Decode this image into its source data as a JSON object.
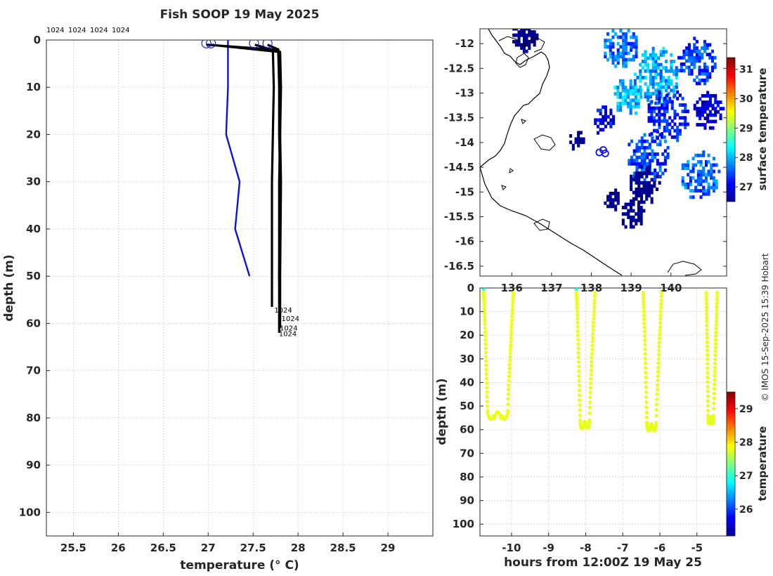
{
  "credit": "© IMOS 15-Sep-2025 15:39 Hobart",
  "chart_data": [
    {
      "type": "line",
      "name": "profile",
      "title": "Fish SOOP 19 May 2025",
      "xlabel": "temperature (° C)",
      "ylabel": "depth (m)",
      "xlim": [
        25.2,
        29.5
      ],
      "ylim": [
        0,
        105
      ],
      "xticks": [
        "25.5",
        "26",
        "26.5",
        "27",
        "27.5",
        "28",
        "28.5",
        "29"
      ],
      "xtick_values": [
        25.5,
        26,
        26.5,
        27,
        27.5,
        28,
        28.5,
        29
      ],
      "yticks": [
        "0",
        "10",
        "20",
        "30",
        "40",
        "50",
        "60",
        "70",
        "80",
        "90",
        "100"
      ],
      "ytick_values": [
        0,
        10,
        20,
        30,
        40,
        50,
        60,
        70,
        80,
        90,
        100
      ],
      "top_labels": [
        "1024",
        "1024",
        "1024",
        "1024"
      ],
      "series": [
        {
          "name": "climatology",
          "color": "#0a14d4",
          "temps": [
            27.22,
            27.22,
            27.2,
            27.35,
            27.3,
            27.46
          ],
          "depths": [
            0,
            10,
            20,
            30,
            40,
            50
          ]
        },
        {
          "name": "profile-1",
          "color": "#000000",
          "temps": [
            26.98,
            27.72,
            27.73,
            27.72,
            27.71,
            27.71,
            27.71
          ],
          "depths": [
            1,
            2,
            10,
            20,
            30,
            50,
            56.5
          ]
        },
        {
          "name": "profile-2",
          "color": "#000000",
          "temps": [
            27.02,
            27.78,
            27.79,
            27.79,
            27.8,
            27.79,
            27.8
          ],
          "depths": [
            1,
            2.5,
            10,
            20,
            30,
            50,
            58.5
          ]
        },
        {
          "name": "profile-3",
          "color": "#000000",
          "temps": [
            27.52,
            27.8,
            27.81,
            27.8,
            27.81,
            27.8,
            27.8
          ],
          "depths": [
            1,
            2.5,
            10,
            20,
            30,
            50,
            61
          ]
        },
        {
          "name": "profile-4",
          "color": "#000000",
          "temps": [
            27.66,
            27.78,
            27.8,
            27.8,
            27.79,
            27.79,
            27.79
          ],
          "depths": [
            1,
            2,
            10,
            20,
            30,
            50,
            62
          ]
        }
      ],
      "surface_markers": [
        {
          "temp": 26.98,
          "depth": 0.7
        },
        {
          "temp": 27.03,
          "depth": 0.7
        },
        {
          "temp": 27.51,
          "depth": 0.7
        },
        {
          "temp": 27.66,
          "depth": 0.7
        }
      ],
      "end_labels": [
        {
          "text": "1024",
          "temp": 27.72,
          "depth": 56.5
        },
        {
          "text": "1024",
          "temp": 27.8,
          "depth": 58.3
        },
        {
          "text": "1024",
          "temp": 27.78,
          "depth": 60.3
        },
        {
          "text": "1024",
          "temp": 27.77,
          "depth": 61.5
        }
      ]
    },
    {
      "type": "heatmap",
      "name": "map",
      "xlim": [
        135.2,
        141.4
      ],
      "ylim": [
        -16.7,
        -11.7
      ],
      "xticks": [
        "136",
        "137",
        "138",
        "139",
        "140"
      ],
      "xtick_values": [
        136,
        137,
        138,
        139,
        140
      ],
      "yticks": [
        "-12",
        "-12.5",
        "-13",
        "-13.5",
        "-14",
        "-14.5",
        "-15",
        "-15.5",
        "-16",
        "-16.5"
      ],
      "ytick_values": [
        -12,
        -12.5,
        -13,
        -13.5,
        -14,
        -14.5,
        -15,
        -15.5,
        -16,
        -16.5
      ],
      "colorbar_label": "surface temperature",
      "colorbar_ticks": [
        "27",
        "28",
        "29",
        "30",
        "31"
      ],
      "colorbar_values": [
        27,
        28,
        29,
        30,
        31
      ],
      "colorbar_range": [
        26.5,
        31.4
      ],
      "track": [
        {
          "lon": 138.2,
          "lat": -14.2
        },
        {
          "lon": 138.3,
          "lat": -14.15
        },
        {
          "lon": 138.35,
          "lat": -14.22
        }
      ],
      "sst_blobs": [
        {
          "lon": 136.3,
          "lat": -11.9,
          "r": 0.35,
          "t": 26.0
        },
        {
          "lon": 138.7,
          "lat": -12.1,
          "r": 0.45,
          "t": 27.6
        },
        {
          "lon": 139.6,
          "lat": -12.7,
          "r": 0.6,
          "t": 27.9
        },
        {
          "lon": 140.6,
          "lat": -12.4,
          "r": 0.5,
          "t": 27.4
        },
        {
          "lon": 138.9,
          "lat": -13.1,
          "r": 0.4,
          "t": 28.0
        },
        {
          "lon": 139.9,
          "lat": -13.5,
          "r": 0.55,
          "t": 27.2
        },
        {
          "lon": 140.9,
          "lat": -13.4,
          "r": 0.4,
          "t": 26.8
        },
        {
          "lon": 139.4,
          "lat": -14.3,
          "r": 0.55,
          "t": 27.4
        },
        {
          "lon": 140.7,
          "lat": -14.7,
          "r": 0.5,
          "t": 27.6
        },
        {
          "lon": 139.3,
          "lat": -14.9,
          "r": 0.4,
          "t": 26.1
        },
        {
          "lon": 138.5,
          "lat": -15.2,
          "r": 0.25,
          "t": 26.0
        },
        {
          "lon": 139.0,
          "lat": -15.5,
          "r": 0.3,
          "t": 26.2
        },
        {
          "lon": 137.6,
          "lat": -14.0,
          "r": 0.22,
          "t": 26.0
        },
        {
          "lon": 138.3,
          "lat": -13.6,
          "r": 0.3,
          "t": 27.0
        }
      ]
    },
    {
      "type": "scatter",
      "name": "section",
      "xlabel": "hours from 12:00Z 19 May 25",
      "ylabel": "depth (m)",
      "xlim": [
        -10.85,
        -4.2
      ],
      "ylim": [
        0,
        105
      ],
      "xticks": [
        "-10",
        "-9",
        "-8",
        "-7",
        "-6",
        "-5"
      ],
      "xtick_values": [
        -10,
        -9,
        -8,
        -7,
        -6,
        -5
      ],
      "yticks": [
        "0",
        "10",
        "20",
        "30",
        "40",
        "50",
        "60",
        "70",
        "80",
        "90",
        "100"
      ],
      "ytick_values": [
        0,
        10,
        20,
        30,
        40,
        50,
        60,
        70,
        80,
        90,
        100
      ],
      "colorbar_label": "temperature",
      "colorbar_ticks": [
        "26",
        "27",
        "28",
        "29"
      ],
      "colorbar_values": [
        26,
        27,
        28,
        29
      ],
      "colorbar_range": [
        25.2,
        29.5
      ],
      "casts": [
        {
          "start": -10.75,
          "bottom_start": -10.65,
          "bottom_end": -10.1,
          "end": -9.95,
          "max_depth": 56,
          "temp": 27.8
        },
        {
          "start": -8.25,
          "bottom_start": -8.15,
          "bottom_end": -7.9,
          "end": -7.75,
          "max_depth": 60,
          "temp": 27.79
        },
        {
          "start": -6.45,
          "bottom_start": -6.35,
          "bottom_end": -6.1,
          "end": -5.95,
          "max_depth": 61,
          "temp": 27.79
        },
        {
          "start": -4.75,
          "bottom_start": -4.7,
          "bottom_end": -4.55,
          "end": -4.45,
          "max_depth": 58,
          "temp": 27.78
        }
      ]
    }
  ]
}
